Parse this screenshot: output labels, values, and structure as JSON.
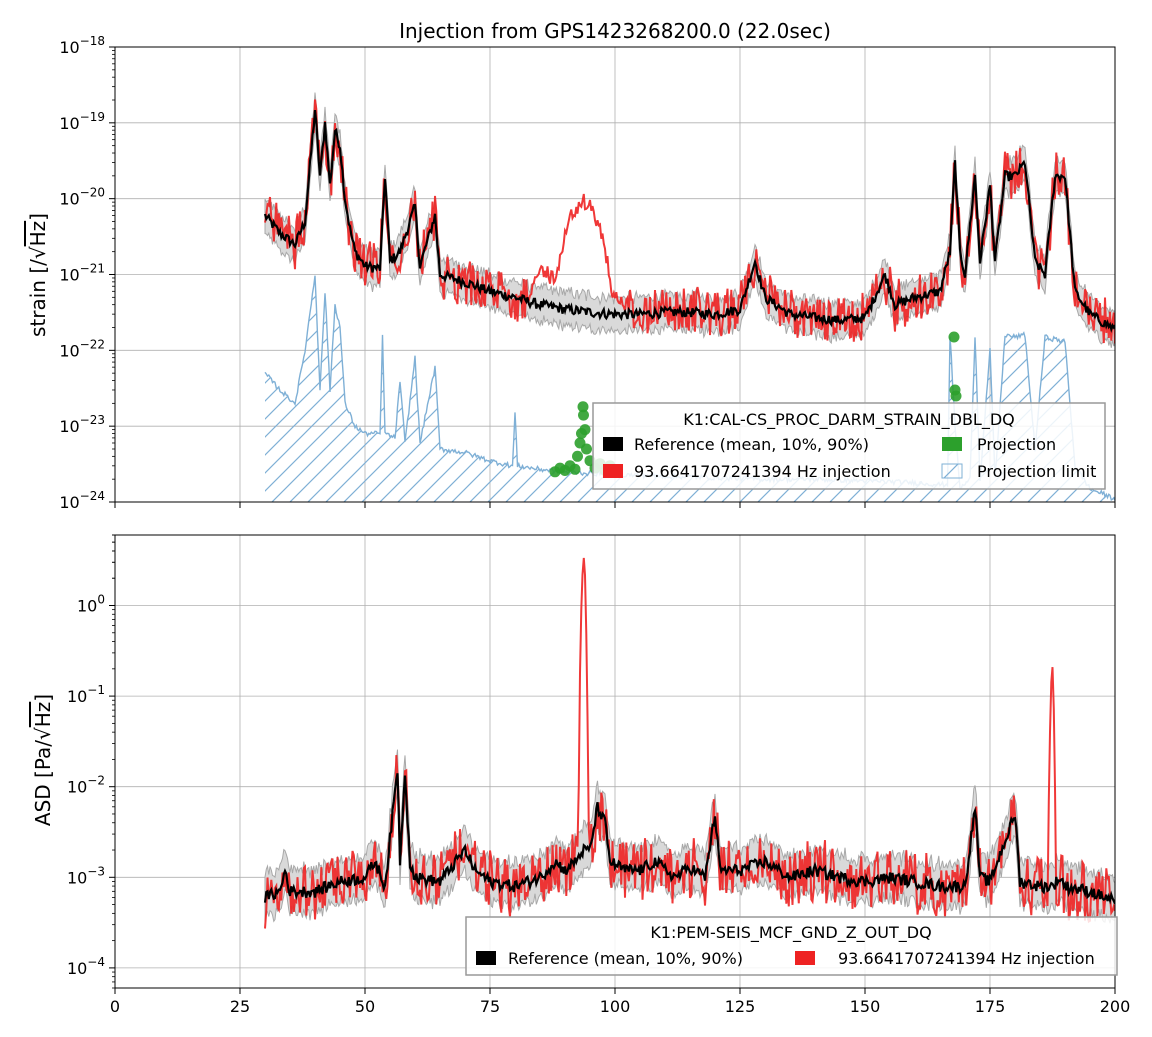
{
  "figure": {
    "title": "Injection from GPS1423268200.0 (22.0sec)"
  },
  "colors": {
    "reference": "#000000",
    "reference_band_fill": "#d9d9d9",
    "reference_band_edge": "#a8a8a8",
    "injection": "#ee2222",
    "projection": "#2ca02c",
    "projection_limit": "#7fb0d6",
    "grid": "#b0b0b0"
  },
  "chart_data": [
    {
      "type": "line",
      "ylabel_prefix": "strain [/",
      "ylabel_unit": "Hz",
      "ylabel_suffix": "]",
      "yscale": "log",
      "xlim": [
        0,
        200
      ],
      "ylim": [
        1e-24,
        1e-18
      ],
      "x_ticks": [
        "0",
        "25",
        "50",
        "75",
        "100",
        "125",
        "150",
        "175",
        "200"
      ],
      "x_tick_labels_shown": false,
      "y_ticks": [
        {
          "mantissa": "10",
          "exp": "−18"
        },
        {
          "mantissa": "10",
          "exp": "−19"
        },
        {
          "mantissa": "10",
          "exp": "−20"
        },
        {
          "mantissa": "10",
          "exp": "−21"
        },
        {
          "mantissa": "10",
          "exp": "−22"
        },
        {
          "mantissa": "10",
          "exp": "−23"
        },
        {
          "mantissa": "10",
          "exp": "−24"
        }
      ],
      "grid": true,
      "legend": {
        "title": "K1:CAL-CS_PROC_DARM_STRAIN_DBL_DQ",
        "placement": "lower-right",
        "columns": 2,
        "entries": [
          "Reference (mean, 10%, 90%)",
          "Projection",
          "93.6641707241394 Hz injection",
          "Projection limit"
        ]
      },
      "baseline": [
        [
          30,
          6e-21
        ],
        [
          33,
          3.5e-21
        ],
        [
          36,
          2.5e-21
        ],
        [
          38,
          5e-21
        ],
        [
          40,
          1.5e-19
        ],
        [
          41,
          2e-20
        ],
        [
          42,
          1e-19
        ],
        [
          43,
          1.5e-20
        ],
        [
          44,
          8e-20
        ],
        [
          45,
          5e-20
        ],
        [
          46,
          1e-20
        ],
        [
          47,
          4e-21
        ],
        [
          48,
          2e-21
        ],
        [
          50,
          1.3e-21
        ],
        [
          53,
          1.2e-21
        ],
        [
          54,
          2e-20
        ],
        [
          55,
          1.5e-21
        ],
        [
          57,
          2e-21
        ],
        [
          60,
          8e-21
        ],
        [
          61,
          1.3e-21
        ],
        [
          64,
          6e-21
        ],
        [
          65,
          1e-21
        ],
        [
          70,
          8e-22
        ],
        [
          75,
          6e-22
        ],
        [
          80,
          5e-22
        ],
        [
          85,
          4e-22
        ],
        [
          90,
          3.5e-22
        ],
        [
          95,
          3.2e-22
        ],
        [
          100,
          3e-22
        ],
        [
          105,
          3e-22
        ],
        [
          110,
          3.2e-22
        ],
        [
          115,
          3.2e-22
        ],
        [
          120,
          3e-22
        ],
        [
          125,
          3.5e-22
        ],
        [
          128,
          1.5e-21
        ],
        [
          130,
          5e-22
        ],
        [
          135,
          3e-22
        ],
        [
          140,
          2.7e-22
        ],
        [
          145,
          2.5e-22
        ],
        [
          150,
          2.7e-22
        ],
        [
          154,
          1e-21
        ],
        [
          156,
          4e-22
        ],
        [
          160,
          5e-22
        ],
        [
          165,
          6e-22
        ],
        [
          167,
          2e-21
        ],
        [
          168,
          3e-20
        ],
        [
          169,
          2e-21
        ],
        [
          170,
          1e-21
        ],
        [
          172,
          2e-20
        ],
        [
          173,
          1.5e-21
        ],
        [
          175,
          1.5e-20
        ],
        [
          176,
          1.5e-21
        ],
        [
          178,
          2e-20
        ],
        [
          180,
          2e-20
        ],
        [
          182,
          3e-20
        ],
        [
          184,
          1.5e-21
        ],
        [
          186,
          1e-21
        ],
        [
          188,
          2e-20
        ],
        [
          190,
          2e-20
        ],
        [
          192,
          6e-22
        ],
        [
          195,
          3e-22
        ],
        [
          200,
          1.9e-22
        ]
      ],
      "band_low_factor": 0.65,
      "band_high_factor": 1.5,
      "injection_bumps": [
        [
          93.7,
          1e-20,
          3.5
        ],
        [
          86,
          1.2e-21,
          3
        ],
        [
          100,
          6e-22,
          3
        ]
      ],
      "projection_points": [
        [
          88,
          2.5e-24
        ],
        [
          89,
          2.8e-24
        ],
        [
          90,
          2.6e-24
        ],
        [
          91,
          3e-24
        ],
        [
          92,
          2.7e-24
        ],
        [
          92.5,
          4e-24
        ],
        [
          93,
          6e-24
        ],
        [
          93.3,
          8e-24
        ],
        [
          93.6,
          1.8e-23
        ],
        [
          93.7,
          1.4e-23
        ],
        [
          94,
          9e-24
        ],
        [
          94.3,
          5e-24
        ],
        [
          95,
          3.5e-24
        ],
        [
          96,
          2.8e-24
        ],
        [
          97,
          3.2e-24
        ],
        [
          98,
          2.6e-24
        ],
        [
          99,
          3e-24
        ],
        [
          100,
          2.5e-24
        ],
        [
          167.8,
          1.5e-22
        ],
        [
          168,
          3e-23
        ],
        [
          168.2,
          2.5e-23
        ]
      ],
      "projection_limit": [
        [
          30,
          5e-23
        ],
        [
          33,
          3e-23
        ],
        [
          36,
          2e-23
        ],
        [
          38,
          1e-22
        ],
        [
          40,
          1e-21
        ],
        [
          41,
          3e-23
        ],
        [
          42,
          6e-22
        ],
        [
          43,
          3e-23
        ],
        [
          44,
          4e-22
        ],
        [
          45,
          2e-22
        ],
        [
          46,
          2e-23
        ],
        [
          48,
          1e-23
        ],
        [
          50,
          8e-24
        ],
        [
          53,
          8e-24
        ],
        [
          53.5,
          1.5e-22
        ],
        [
          54,
          8e-24
        ],
        [
          56,
          7e-24
        ],
        [
          57,
          4e-23
        ],
        [
          58,
          6e-24
        ],
        [
          60,
          8e-23
        ],
        [
          61,
          6e-24
        ],
        [
          64,
          6e-23
        ],
        [
          65,
          5e-24
        ],
        [
          70,
          4.5e-24
        ],
        [
          75,
          3.5e-24
        ],
        [
          79.5,
          3e-24
        ],
        [
          80,
          1.5e-23
        ],
        [
          80.5,
          3e-24
        ],
        [
          85,
          2.7e-24
        ],
        [
          90,
          2.5e-24
        ],
        [
          100,
          2.3e-24
        ],
        [
          110,
          2.2e-24
        ],
        [
          120,
          2.1e-24
        ],
        [
          130,
          2e-24
        ],
        [
          140,
          2e-24
        ],
        [
          150,
          1.9e-24
        ],
        [
          160,
          1.8e-24
        ],
        [
          165,
          1.7e-24
        ],
        [
          166.5,
          1.7e-24
        ],
        [
          167,
          1.6e-22
        ],
        [
          168,
          1e-23
        ],
        [
          169,
          1.5e-24
        ],
        [
          171,
          2e-24
        ],
        [
          172,
          1.6e-22
        ],
        [
          173,
          2e-24
        ],
        [
          175,
          1e-22
        ],
        [
          176,
          2e-24
        ],
        [
          178,
          1.6e-22
        ],
        [
          180,
          1.5e-22
        ],
        [
          182,
          1.6e-22
        ],
        [
          184,
          5e-24
        ],
        [
          186,
          1.5e-22
        ],
        [
          188,
          1.4e-22
        ],
        [
          190,
          1.3e-22
        ],
        [
          192,
          3e-24
        ],
        [
          195,
          1.5e-24
        ],
        [
          200,
          1.1e-24
        ]
      ]
    },
    {
      "type": "line",
      "ylabel_prefix": "ASD [Pa/",
      "ylabel_unit": "Hz",
      "ylabel_suffix": "]",
      "yscale": "log",
      "xlim": [
        0,
        200
      ],
      "ylim": [
        6e-05,
        6
      ],
      "x_ticks": [
        "0",
        "25",
        "50",
        "75",
        "100",
        "125",
        "150",
        "175",
        "200"
      ],
      "x_tick_labels_shown": true,
      "y_ticks": [
        {
          "mantissa": "10",
          "exp": "0"
        },
        {
          "mantissa": "10",
          "exp": "−1"
        },
        {
          "mantissa": "10",
          "exp": "−2"
        },
        {
          "mantissa": "10",
          "exp": "−3"
        },
        {
          "mantissa": "10",
          "exp": "−4"
        }
      ],
      "grid": true,
      "legend": {
        "title": "K1:PEM-SEIS_MCF_GND_Z_OUT_DQ",
        "placement": "lower-right",
        "columns": 2,
        "entries": [
          "Reference (mean, 10%, 90%)",
          "93.6641707241394 Hz injection"
        ]
      },
      "baseline": [
        [
          30,
          0.0006
        ],
        [
          33,
          0.0007
        ],
        [
          34,
          0.0012
        ],
        [
          35,
          0.0007
        ],
        [
          40,
          0.0007
        ],
        [
          45,
          0.0009
        ],
        [
          50,
          0.001
        ],
        [
          52,
          0.0015
        ],
        [
          54,
          0.0008
        ],
        [
          56.5,
          0.016
        ],
        [
          57,
          0.0015
        ],
        [
          58,
          0.015
        ],
        [
          59,
          0.0015
        ],
        [
          60,
          0.001
        ],
        [
          65,
          0.0009
        ],
        [
          70,
          0.002
        ],
        [
          72,
          0.0012
        ],
        [
          75,
          0.0009
        ],
        [
          80,
          0.0008
        ],
        [
          85,
          0.001
        ],
        [
          88,
          0.0015
        ],
        [
          90,
          0.0012
        ],
        [
          92,
          0.0015
        ],
        [
          93.7,
          0.002
        ],
        [
          95,
          0.002
        ],
        [
          96.5,
          0.006
        ],
        [
          98,
          0.004
        ],
        [
          99,
          0.0015
        ],
        [
          102,
          0.0012
        ],
        [
          105,
          0.0012
        ],
        [
          108,
          0.0015
        ],
        [
          112,
          0.001
        ],
        [
          115,
          0.0013
        ],
        [
          118,
          0.001
        ],
        [
          120,
          0.005
        ],
        [
          121,
          0.0012
        ],
        [
          125,
          0.0012
        ],
        [
          130,
          0.0015
        ],
        [
          135,
          0.001
        ],
        [
          140,
          0.0012
        ],
        [
          145,
          0.001
        ],
        [
          150,
          0.0009
        ],
        [
          155,
          0.001
        ],
        [
          160,
          0.0009
        ],
        [
          165,
          0.0008
        ],
        [
          170,
          0.0008
        ],
        [
          172,
          0.006
        ],
        [
          173,
          0.001
        ],
        [
          175,
          0.0009
        ],
        [
          180,
          0.005
        ],
        [
          181,
          0.0009
        ],
        [
          185,
          0.0008
        ],
        [
          187.5,
          0.0008
        ],
        [
          189,
          0.001
        ],
        [
          190,
          0.0008
        ],
        [
          195,
          0.0007
        ],
        [
          200,
          0.00055
        ]
      ],
      "band_low_factor": 0.65,
      "band_high_factor": 1.6,
      "injection_bumps": [
        [
          93.7,
          3.2,
          0.4
        ],
        [
          187.4,
          0.2,
          0.35
        ]
      ]
    }
  ]
}
